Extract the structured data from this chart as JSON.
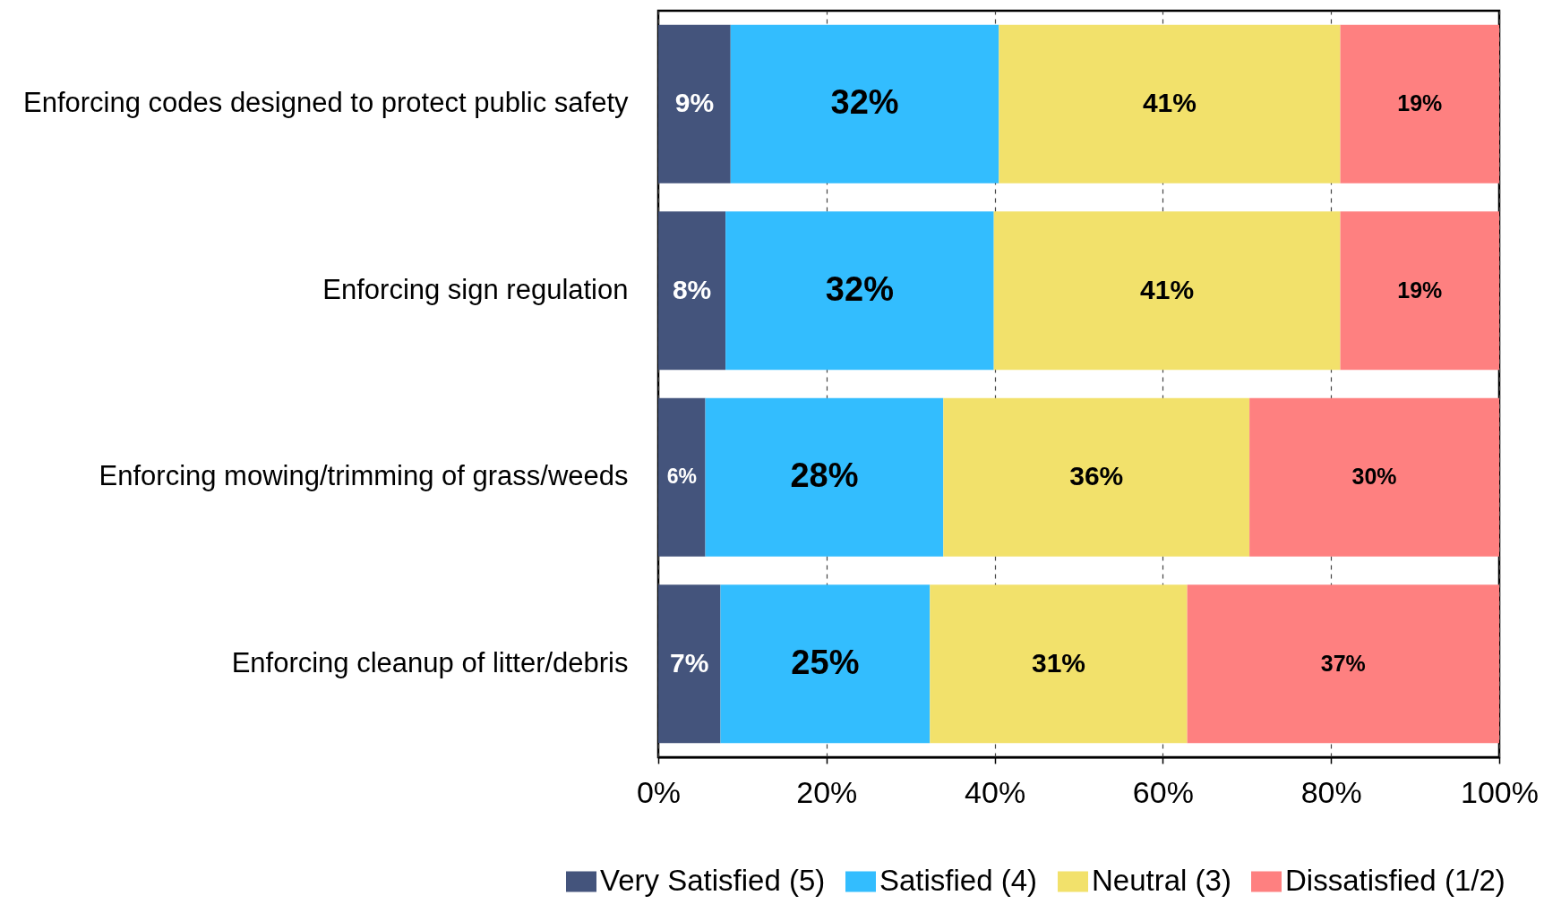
{
  "chart_data": {
    "type": "bar",
    "orientation": "horizontal",
    "stacked": true,
    "categories": [
      "Enforcing codes designed to protect public safety",
      "Enforcing sign regulation",
      "Enforcing mowing/trimming of grass/weeds",
      "Enforcing cleanup of litter/debris"
    ],
    "series": [
      {
        "name": "Very Satisfied (5)",
        "color": "#44547c",
        "values": [
          8.6,
          8.0,
          5.6,
          7.4
        ],
        "value_labels": [
          "9%",
          "8%",
          "6%",
          "7%"
        ]
      },
      {
        "name": "Satisfied (4)",
        "color": "#33bdfe",
        "values": [
          31.9,
          31.9,
          28.3,
          24.9
        ],
        "value_labels": [
          "32%",
          "32%",
          "28%",
          "25%"
        ]
      },
      {
        "name": "Neutral (3)",
        "color": "#f2e16b",
        "values": [
          40.6,
          41.2,
          36.4,
          30.6
        ],
        "value_labels": [
          "41%",
          "41%",
          "36%",
          "31%"
        ]
      },
      {
        "name": "Dissatisfied (1/2)",
        "color": "#fe8080",
        "values": [
          18.9,
          18.9,
          29.7,
          37.1
        ],
        "value_labels": [
          "19%",
          "19%",
          "30%",
          "37%"
        ]
      }
    ],
    "xlim": [
      0,
      100
    ],
    "xticks": [
      {
        "value": 0,
        "label": "0%"
      },
      {
        "value": 20,
        "label": "20%"
      },
      {
        "value": 40,
        "label": "40%"
      },
      {
        "value": 60,
        "label": "60%"
      },
      {
        "value": 80,
        "label": "80%"
      },
      {
        "value": 100,
        "label": "100%"
      }
    ],
    "grid": "x",
    "legend": "bottom"
  }
}
